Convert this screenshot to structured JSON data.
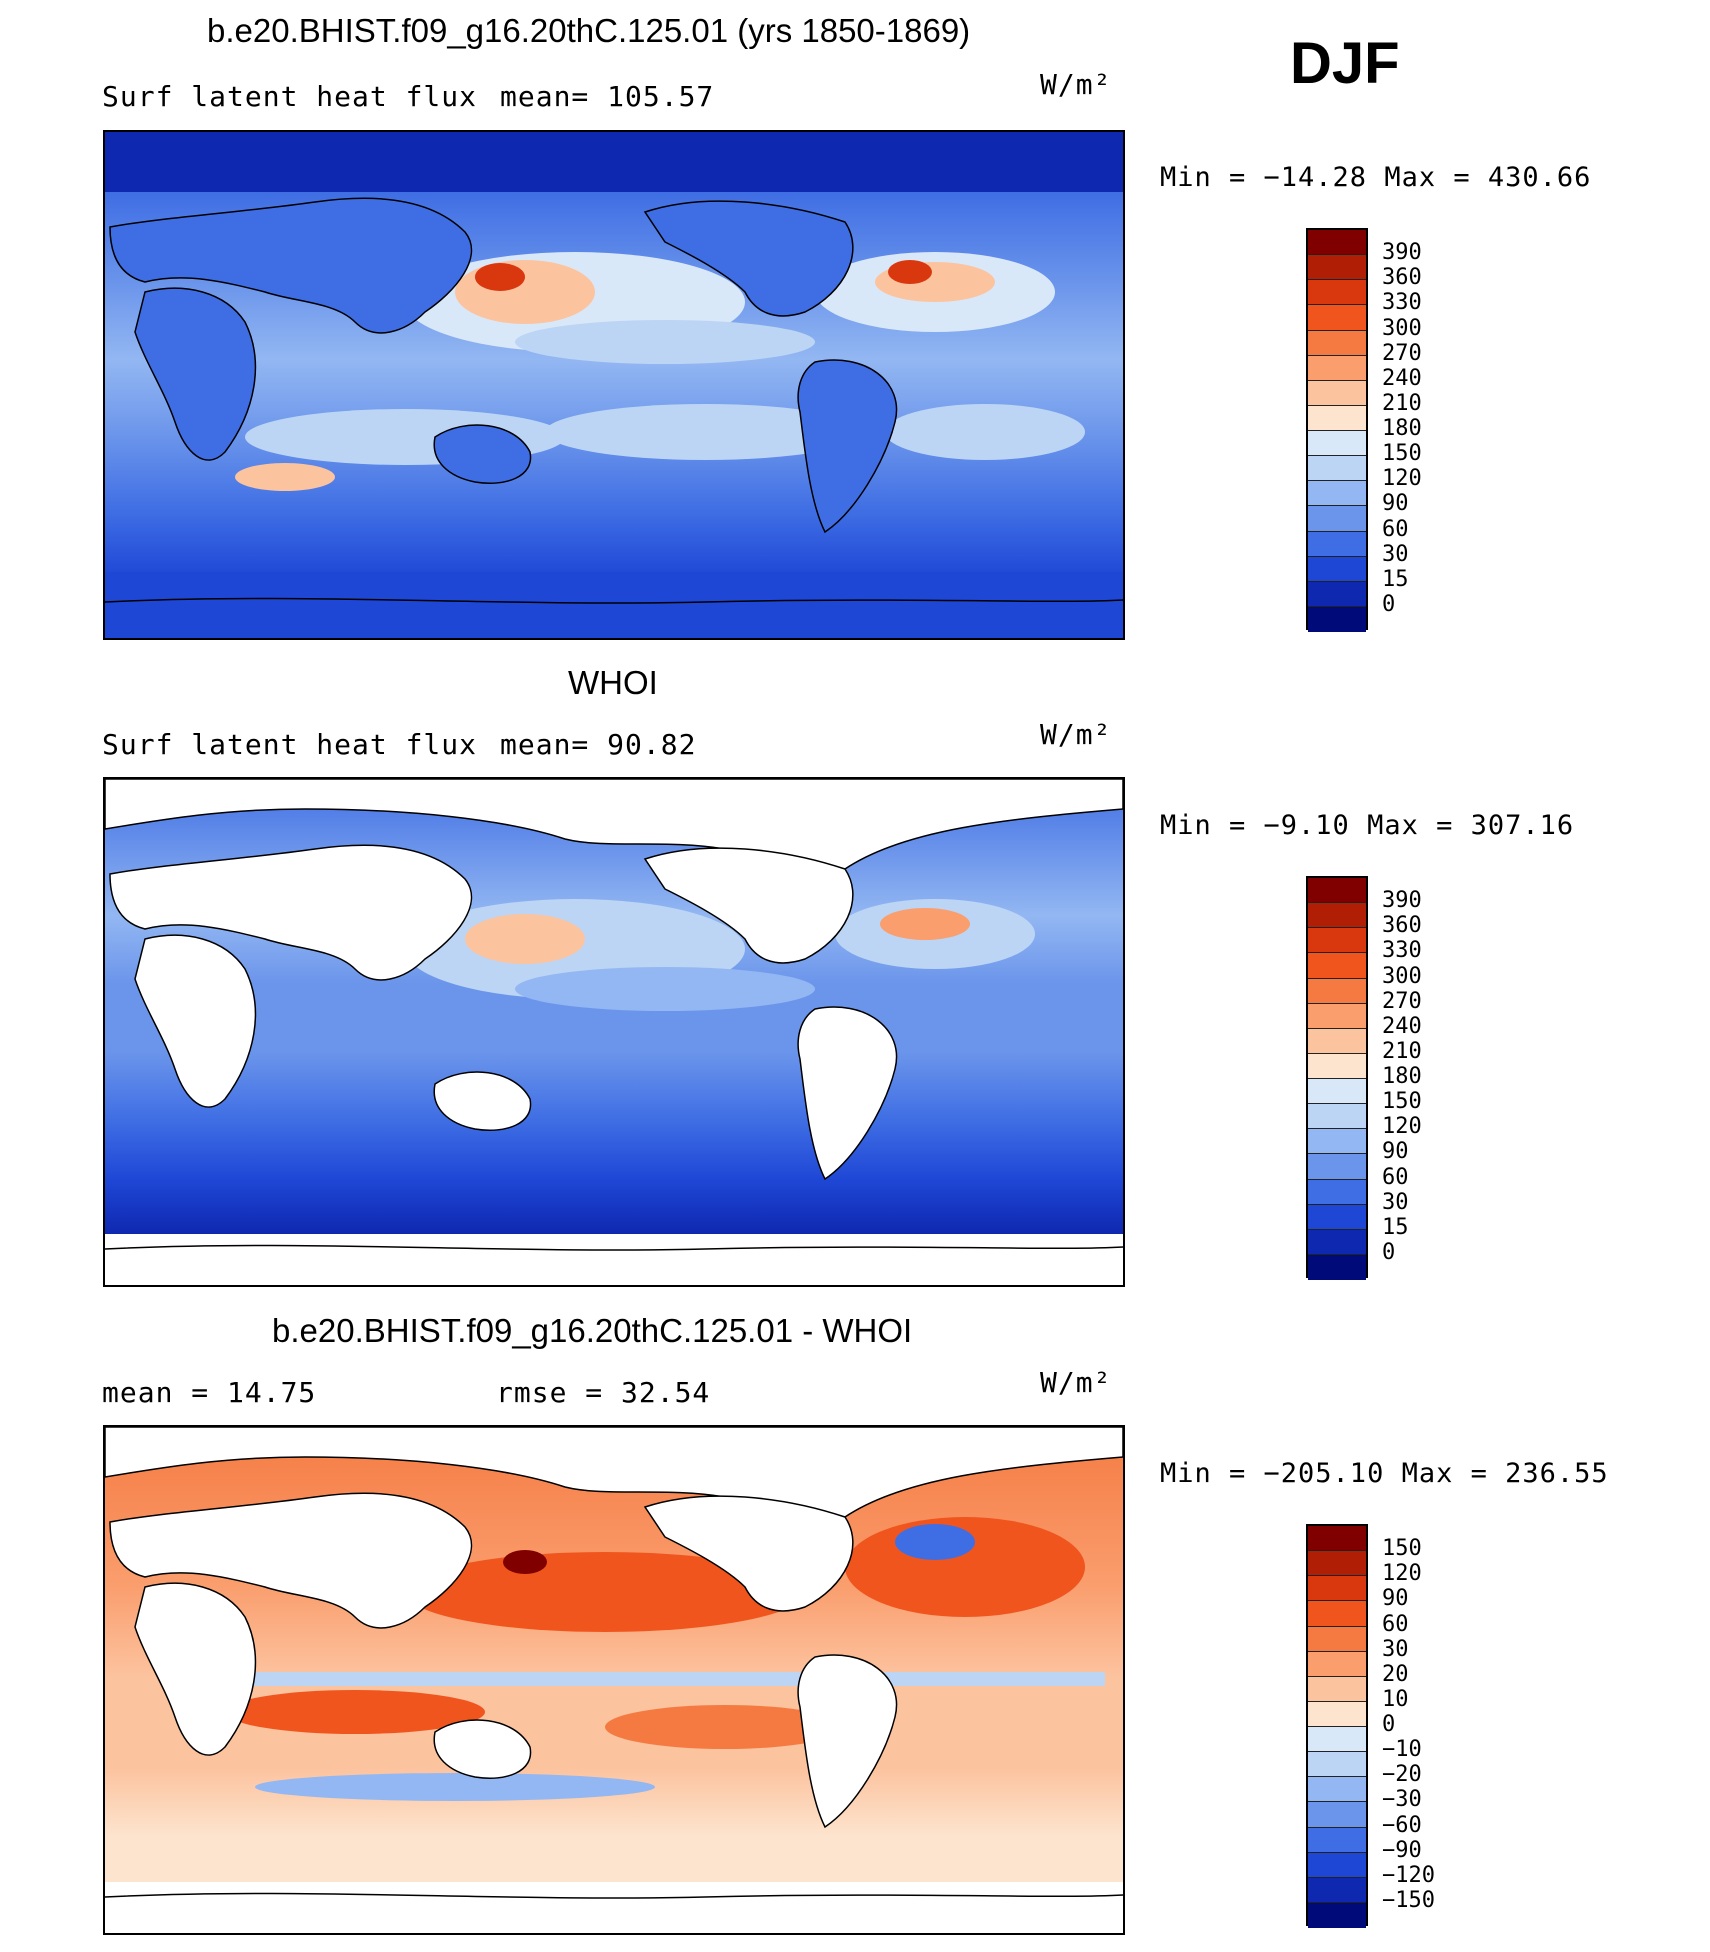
{
  "season": "DJF",
  "panels": [
    {
      "title": "b.e20.BHIST.f09_g16.20thC.125.01 (yrs 1850-1869)",
      "left_label": "Surf latent heat flux",
      "right_label": "mean= 105.57",
      "units": "W/m²",
      "minmax": "Min = −14.28 Max = 430.66"
    },
    {
      "title": "WHOI",
      "left_label": "Surf latent heat flux",
      "right_label": "mean=  90.82",
      "units": "W/m²",
      "minmax": "Min =  −9.10 Max = 307.16"
    },
    {
      "title": "b.e20.BHIST.f09_g16.20thC.125.01 - WHOI",
      "left_label": "mean =  14.75",
      "right_label": "rmse =  32.54",
      "units": "W/m²",
      "minmax": "Min = −205.10 Max = 236.55"
    }
  ],
  "colorbars": {
    "flux": {
      "labels": [
        "390",
        "360",
        "330",
        "300",
        "270",
        "240",
        "210",
        "180",
        "150",
        "120",
        "90",
        "60",
        "30",
        "15",
        "0"
      ],
      "colors": [
        "#800000",
        "#b01e06",
        "#d9380f",
        "#f0551e",
        "#f57a42",
        "#fa9e6e",
        "#fcc39f",
        "#fde4ce",
        "#d9e8f8",
        "#bcd5f5",
        "#93b7f2",
        "#6b95eb",
        "#3f6ee4",
        "#1f47d6",
        "#0f28b0",
        "#000a78"
      ]
    },
    "diff": {
      "labels": [
        "150",
        "120",
        "90",
        "60",
        "30",
        "20",
        "10",
        "0",
        "−10",
        "−20",
        "−30",
        "−60",
        "−90",
        "−120",
        "−150"
      ],
      "colors": [
        "#800000",
        "#b01e06",
        "#d9380f",
        "#f0551e",
        "#f57a42",
        "#fa9e6e",
        "#fcc39f",
        "#fde4ce",
        "#d9e8f8",
        "#bcd5f5",
        "#93b7f2",
        "#6b95eb",
        "#3f6ee4",
        "#1f47d6",
        "#0f28b0",
        "#000a78"
      ]
    }
  }
}
